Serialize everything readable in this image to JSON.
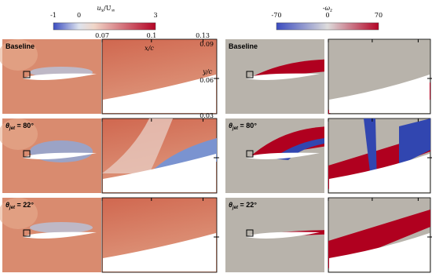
{
  "colorbars": [
    {
      "title": [
        "u",
        "x",
        "/U",
        "∞"
      ],
      "ticks": [
        "-1",
        "0",
        "3"
      ]
    },
    {
      "title": [
        "-ω",
        "z"
      ],
      "ticks": [
        "-70",
        "0",
        "70"
      ]
    }
  ],
  "zoom_axes": {
    "x_label": "x/c",
    "x_ticks": [
      "0.07",
      "0.1",
      "0.13"
    ],
    "y_label": "y/c",
    "y_ticks": [
      "0.09",
      "0.06",
      "0.03"
    ]
  },
  "rows": [
    {
      "label": [
        "Baseline"
      ]
    },
    {
      "label": [
        "θ",
        "jet",
        " = 80°"
      ]
    },
    {
      "label": [
        "θ",
        "jet",
        " = 22°"
      ]
    }
  ]
}
